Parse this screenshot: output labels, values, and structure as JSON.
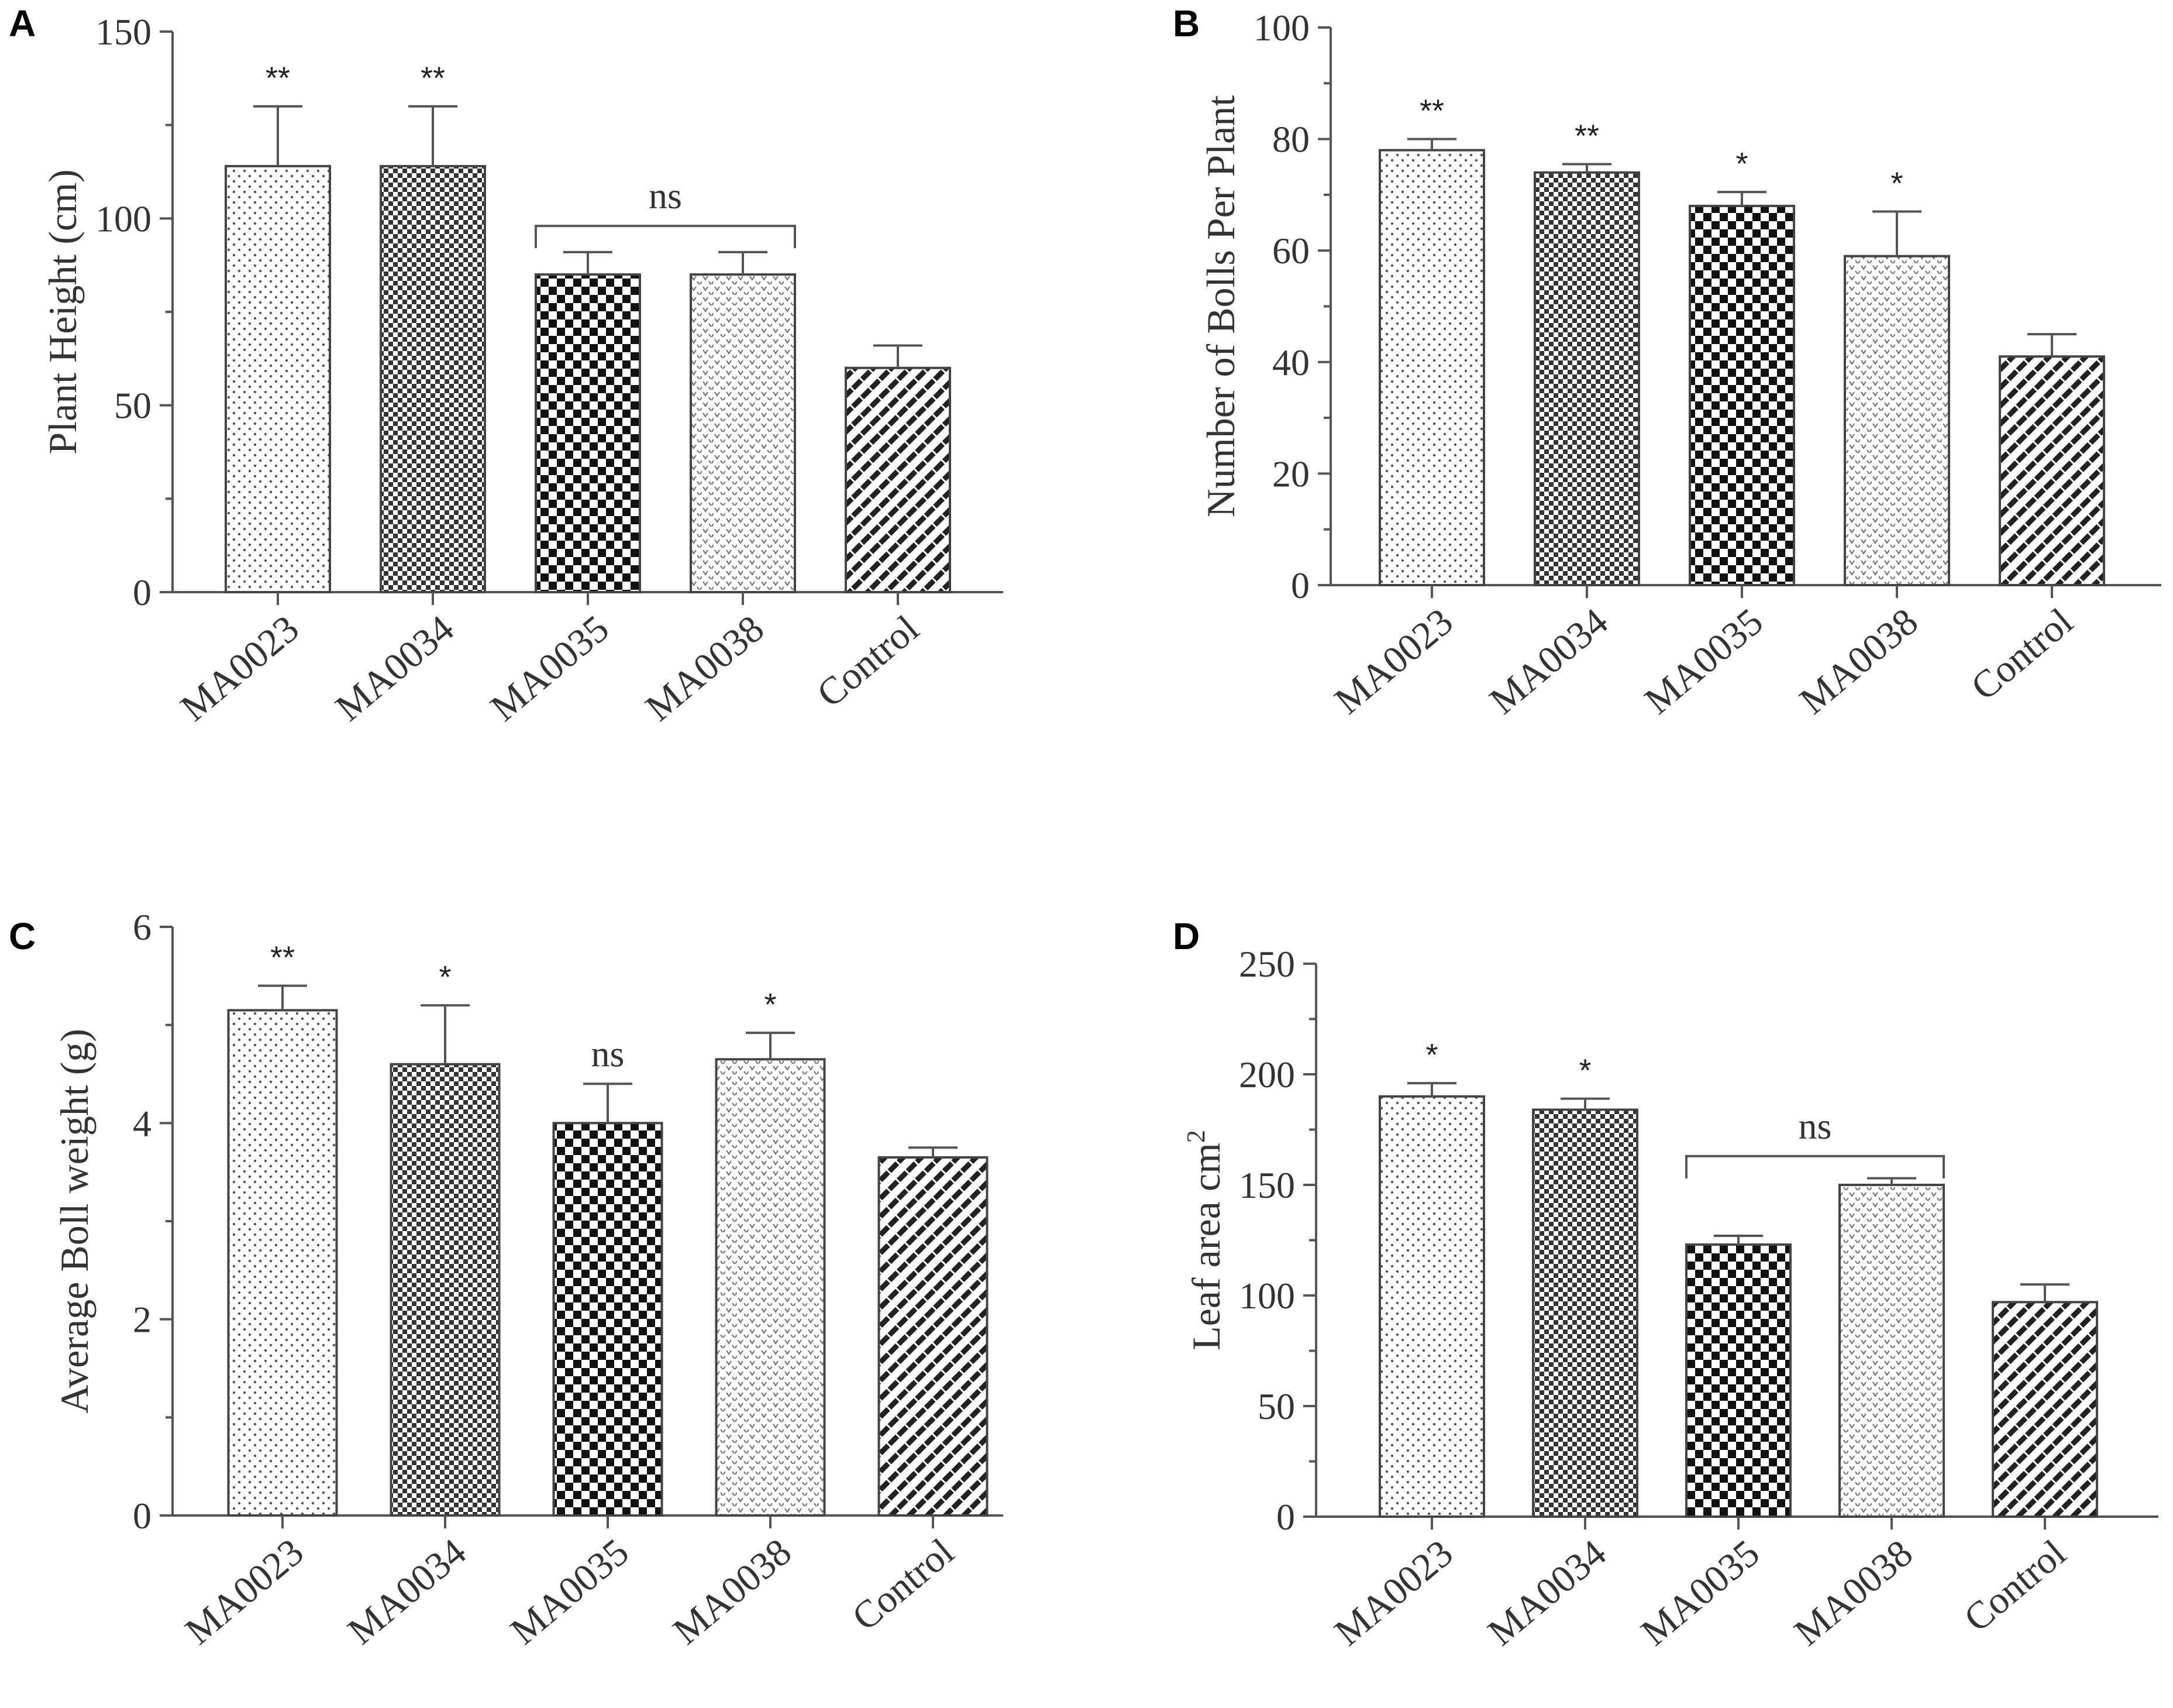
{
  "chart_data": [
    {
      "panel": "A",
      "type": "bar",
      "title": "",
      "xlabel": "",
      "ylabel": "Plant  Height (cm)",
      "categories": [
        "MA0023",
        "MA0034",
        "MA0035",
        "MA0038",
        "Control"
      ],
      "values": [
        114,
        114,
        85,
        85,
        60
      ],
      "errors": [
        16,
        16,
        6,
        6,
        6
      ],
      "significance": [
        "**",
        "**",
        "",
        "",
        ""
      ],
      "bracket": {
        "label": "ns",
        "from": 2,
        "to": 3,
        "y": 98
      },
      "ylim": [
        0,
        150
      ],
      "major_ticks": [
        0,
        50,
        100,
        150
      ],
      "minor_tick_step": 25
    },
    {
      "panel": "B",
      "type": "bar",
      "title": "",
      "xlabel": "",
      "ylabel": "Number of Bolls Per Plant",
      "categories": [
        "MA0023",
        "MA0034",
        "MA0035",
        "MA0038",
        "Control"
      ],
      "values": [
        78,
        74,
        68,
        59,
        41
      ],
      "errors": [
        2,
        1.5,
        2.5,
        8,
        4
      ],
      "significance": [
        "**",
        "**",
        "*",
        "*",
        ""
      ],
      "bracket": null,
      "ylim": [
        0,
        100
      ],
      "major_ticks": [
        0,
        20,
        40,
        60,
        80,
        100
      ],
      "minor_tick_step": 10
    },
    {
      "panel": "C",
      "type": "bar",
      "title": "",
      "xlabel": "",
      "ylabel": "Average Boll weight (g)",
      "categories": [
        "MA0023",
        "MA0034",
        "MA0035",
        "MA0038",
        "Control"
      ],
      "values": [
        5.15,
        4.6,
        4.0,
        4.65,
        3.65
      ],
      "errors": [
        0.25,
        0.6,
        0.4,
        0.27,
        0.1
      ],
      "significance": [
        "**",
        "*",
        "ns",
        "*",
        ""
      ],
      "bracket": null,
      "ylim": [
        0,
        6
      ],
      "major_ticks": [
        0,
        2,
        4,
        6
      ],
      "minor_tick_step": 1
    },
    {
      "panel": "D",
      "type": "bar",
      "title": "",
      "xlabel": "",
      "ylabel": "Leaf area cm",
      "ylabel_superscript": "2",
      "categories": [
        "MA0023",
        "MA0034",
        "MA0035",
        "MA0038",
        "Control"
      ],
      "values": [
        190,
        184,
        123,
        150,
        97
      ],
      "errors": [
        6,
        5,
        4,
        3,
        8
      ],
      "significance": [
        "*",
        "*",
        "",
        "",
        ""
      ],
      "bracket": {
        "label": "ns",
        "from": 2,
        "to": 3,
        "y": 163
      },
      "ylim": [
        0,
        250
      ],
      "major_ticks": [
        0,
        50,
        100,
        150,
        200,
        250
      ],
      "minor_tick_step": 25
    }
  ]
}
